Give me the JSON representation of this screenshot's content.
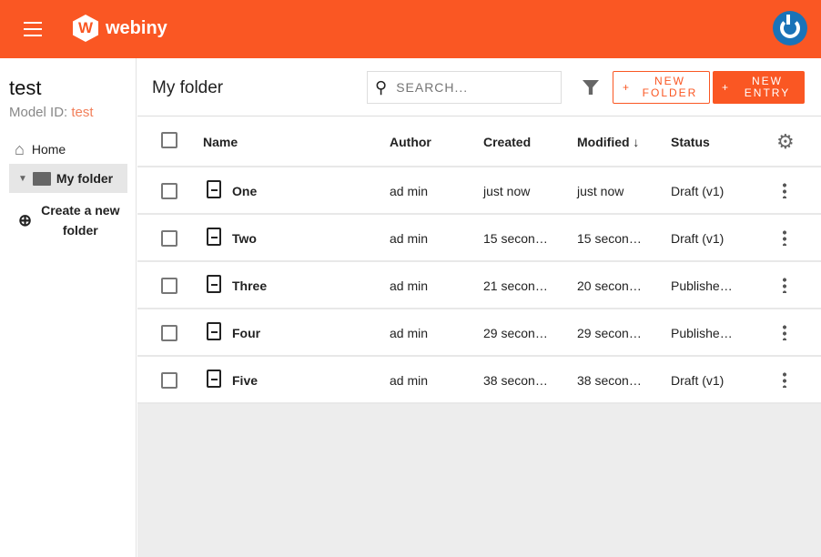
{
  "header": {
    "logo": "webiny",
    "logo_mark": "W"
  },
  "sidebar": {
    "title": "test",
    "model_label": "Model ID:",
    "model_id": "test",
    "home": "Home",
    "folder": "My folder",
    "create_line1": "Create a new",
    "create_line2": "folder"
  },
  "toolbar": {
    "title": "My folder",
    "search_placeholder": "SEARCH...",
    "new_folder": [
      "NEW",
      "FOLDER"
    ],
    "new_entry": [
      "NEW",
      "ENTRY"
    ]
  },
  "table": {
    "columns": [
      "Name",
      "Author",
      "Created",
      "Modified ↓",
      "Status"
    ],
    "rows": [
      {
        "name": "One",
        "author": "ad min",
        "created": "just now",
        "modified": "just now",
        "status": "Draft (v1)"
      },
      {
        "name": "Two",
        "author": "ad min",
        "created": "15 secon…",
        "modified": "15 secon…",
        "status": "Draft (v1)"
      },
      {
        "name": "Three",
        "author": "ad min",
        "created": "21 secon…",
        "modified": "20 secon…",
        "status": "Publishe…"
      },
      {
        "name": "Four",
        "author": "ad min",
        "created": "29 secon…",
        "modified": "29 secon…",
        "status": "Publishe…"
      },
      {
        "name": "Five",
        "author": "ad min",
        "created": "38 secon…",
        "modified": "38 secon…",
        "status": "Draft (v1)"
      }
    ]
  },
  "colors": {
    "brand": "#fa5723",
    "avatar": "#1a73b8"
  }
}
